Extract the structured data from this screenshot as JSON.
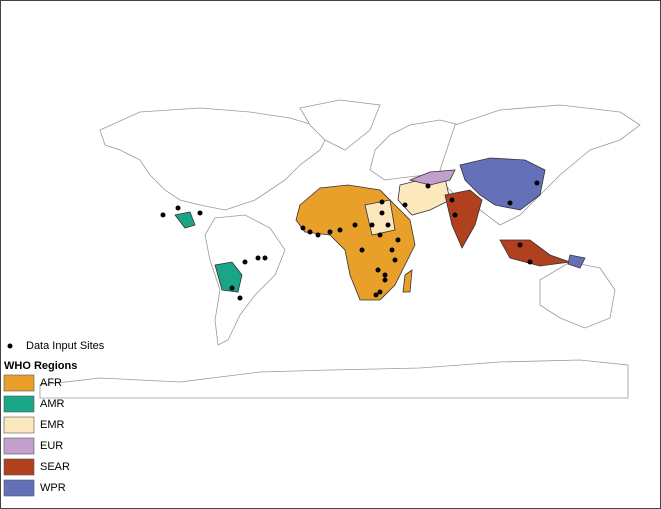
{
  "legend": {
    "sites_label": "Data Input Sites",
    "title": "WHO Regions",
    "regions": [
      {
        "name": "AFR",
        "color": "#e8a02b"
      },
      {
        "name": "AMR",
        "color": "#1ba588"
      },
      {
        "name": "EMR",
        "color": "#fbe8bd"
      },
      {
        "name": "EUR",
        "color": "#c39fcd"
      },
      {
        "name": "SEAR",
        "color": "#b1401e"
      },
      {
        "name": "WPR",
        "color": "#6470b8"
      }
    ]
  }
}
